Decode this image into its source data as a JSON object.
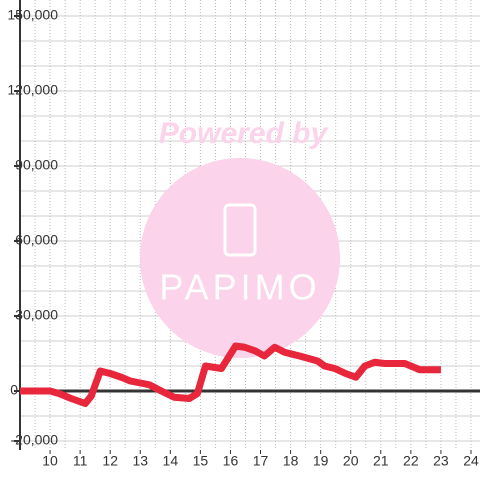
{
  "chart_data": {
    "type": "line",
    "x": [
      9,
      10,
      10.3,
      10.7,
      11.17,
      11.37,
      11.67,
      12,
      12.37,
      12.67,
      13.3,
      13.7,
      14.13,
      14.63,
      14.9,
      15.17,
      15.7,
      16.17,
      16.47,
      16.83,
      17.13,
      17.47,
      17.8,
      18.3,
      18.9,
      19.13,
      19.47,
      19.83,
      20.17,
      20.47,
      20.8,
      21.13,
      21.8,
      22.3,
      23
    ],
    "series": [
      {
        "color": "#e8263c",
        "values": [
          0,
          0,
          -1000,
          -3000,
          -5000,
          -2000,
          8000,
          7000,
          5500,
          4000,
          2500,
          0,
          -2500,
          -3000,
          -1000,
          10000,
          9000,
          18000,
          17500,
          16000,
          14000,
          17500,
          15500,
          14000,
          12000,
          10000,
          9000,
          7000,
          5500,
          10000,
          11500,
          11000,
          11000,
          8500,
          8500
        ]
      }
    ],
    "xlim": [
      9,
      24.3
    ],
    "xticks": [
      10,
      11,
      12,
      13,
      14,
      15,
      16,
      17,
      18,
      19,
      20,
      21,
      22,
      23,
      24
    ],
    "x_minor_ticks": [
      9.5,
      10,
      10.5,
      11,
      11.5,
      12,
      12.5,
      13,
      13.5,
      14,
      14.5,
      15,
      15.5,
      16,
      16.5,
      17,
      17.5,
      18,
      18.5,
      19,
      19.5,
      20,
      20.5,
      21,
      21.5,
      22,
      22.5,
      23,
      23.5,
      24
    ],
    "ylim": [
      -23600,
      156400
    ],
    "yticks": [
      {
        "value": -20000,
        "label": "-20,000"
      },
      0,
      {
        "value": 30000,
        "label": "30,000"
      },
      {
        "value": 60000,
        "label": "60,000"
      },
      {
        "value": 90000,
        "label": "90,000"
      },
      {
        "value": 120000,
        "label": "120,000"
      },
      {
        "value": 150000,
        "label": "150,000"
      }
    ],
    "y_minor_ticks": [
      -20000,
      -10000,
      10000,
      20000,
      30000,
      40000,
      50000,
      60000,
      70000,
      80000,
      90000,
      100000,
      110000,
      120000,
      130000,
      140000,
      150000
    ],
    "grid": true,
    "watermark": {
      "title": "Powered by",
      "brand": "PAPIMO"
    }
  }
}
